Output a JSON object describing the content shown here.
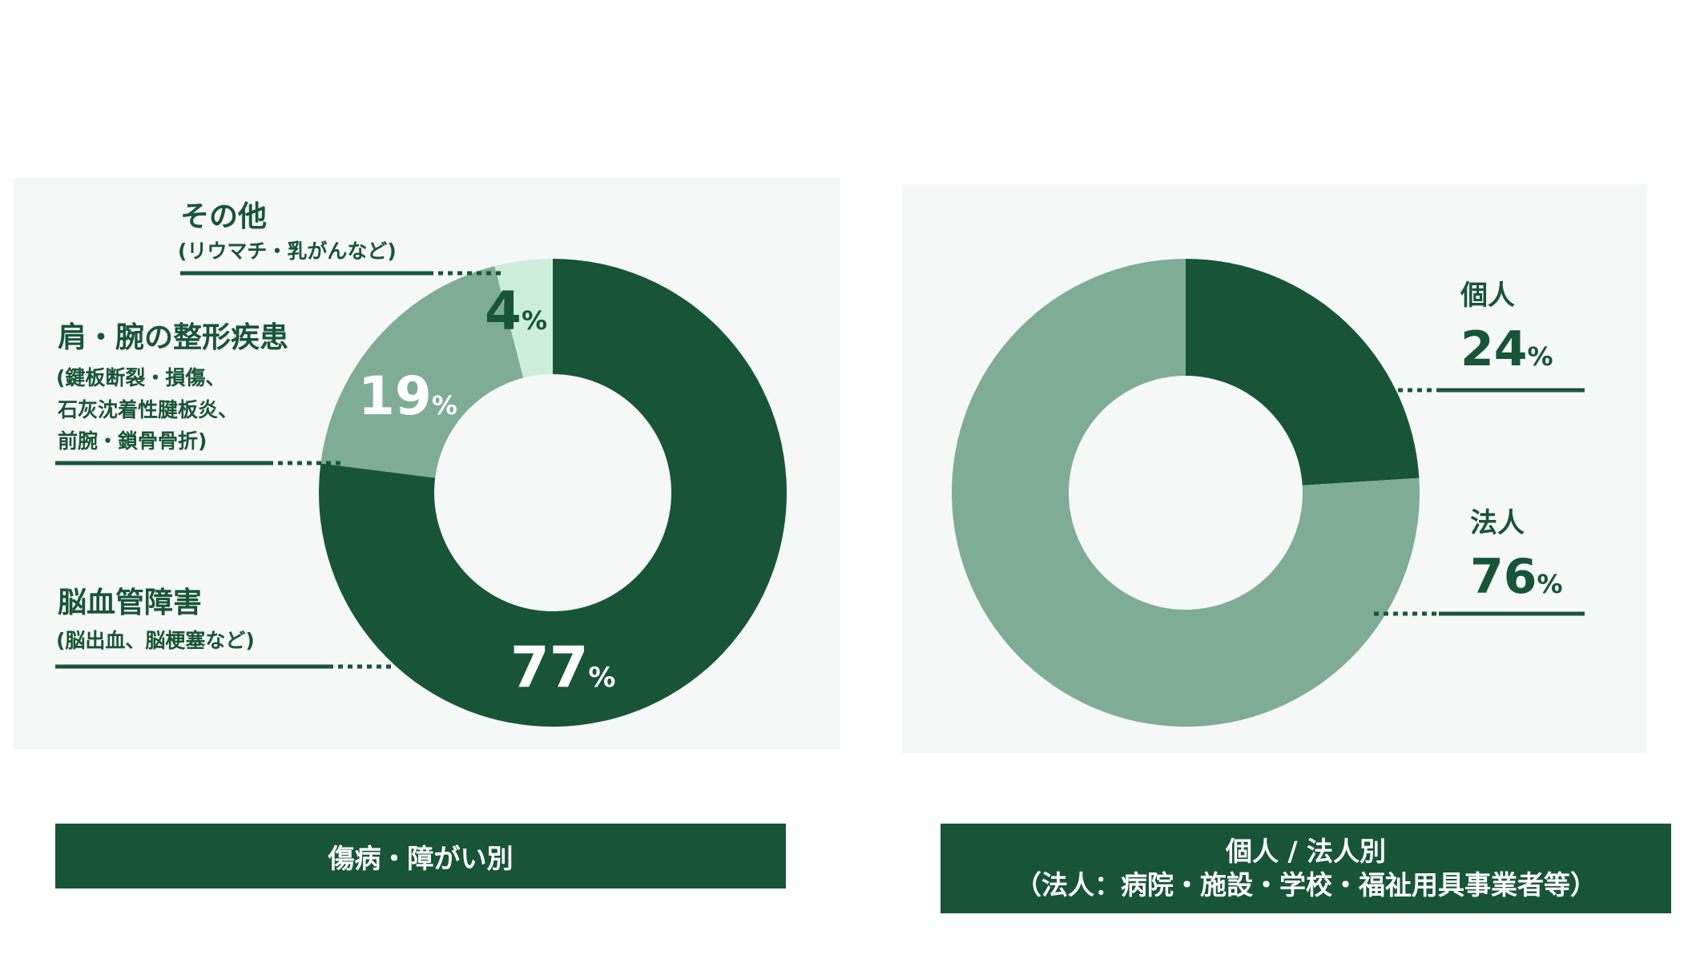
{
  "colors": {
    "dark": "#185538",
    "mid": "#7fac96",
    "light": "#cdeedd",
    "panel": "#f6f8f7"
  },
  "chart_data": [
    {
      "type": "pie",
      "title": "",
      "caption": "傷病・障がい別",
      "unit": "%",
      "slices": [
        {
          "label": "脳血管障害",
          "sublabel": [
            "(脳出血、脳梗塞など)"
          ],
          "value": 77,
          "color": "#185538",
          "value_color": "#ffffff"
        },
        {
          "label": "肩・腕の整形疾患",
          "sublabel": [
            "(鍵板断裂・損傷、",
            "石灰沈着性腱板炎、",
            "前腕・鎖骨骨折)"
          ],
          "value": 19,
          "color": "#7fac96",
          "value_color": "#ffffff"
        },
        {
          "label": "その他",
          "sublabel": [
            "(リウマチ・乳がんなど)"
          ],
          "value": 4,
          "color": "#cdeedd",
          "value_color": "#185538"
        }
      ]
    },
    {
      "type": "pie",
      "title": "",
      "caption": [
        "個人 / 法人別",
        "（法人：病院・施設・学校・福祉用具事業者等）"
      ],
      "unit": "%",
      "slices": [
        {
          "label": "個人",
          "value": 24,
          "color": "#185538"
        },
        {
          "label": "法人",
          "value": 76,
          "color": "#7fac96"
        }
      ]
    }
  ]
}
